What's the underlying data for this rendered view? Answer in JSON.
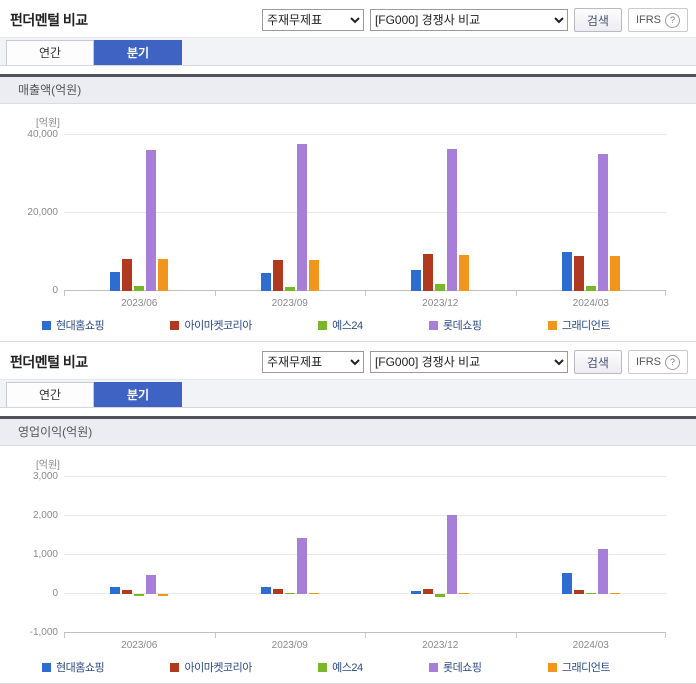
{
  "panels": [
    {
      "title": "펀더멘털 비교",
      "select_statement": "주재무제표",
      "select_compare": "[FG000] 경쟁사 비교",
      "search_label": "검색",
      "ifrs_label": "IFRS",
      "help_label": "?",
      "tab_annual": "연간",
      "tab_quarterly": "분기",
      "section_title": "매출액(억원)",
      "unit_label": "[억원]"
    },
    {
      "title": "펀더멘털 비교",
      "select_statement": "주재무제표",
      "select_compare": "[FG000] 경쟁사 비교",
      "search_label": "검색",
      "ifrs_label": "IFRS",
      "help_label": "?",
      "tab_annual": "연간",
      "tab_quarterly": "분기",
      "section_title": "영업이익(억원)",
      "unit_label": "[억원]"
    }
  ],
  "chart_data": [
    {
      "type": "bar",
      "title": "매출액(억원)",
      "ylabel": "[억원]",
      "categories": [
        "2023/06",
        "2023/09",
        "2023/12",
        "2024/03"
      ],
      "series": [
        {
          "name": "현대홈쇼핑",
          "color": "#2f6cd0",
          "values": [
            4900,
            4700,
            5500,
            9900
          ]
        },
        {
          "name": "아이마켓코리아",
          "color": "#b0391f",
          "values": [
            8300,
            7900,
            9400,
            9000
          ]
        },
        {
          "name": "예스24",
          "color": "#7ab629",
          "values": [
            1300,
            1000,
            1700,
            1300
          ]
        },
        {
          "name": "롯데쇼핑",
          "color": "#a87fd8",
          "values": [
            36200,
            37600,
            36300,
            35200
          ]
        },
        {
          "name": "그래디언트",
          "color": "#f2951d",
          "values": [
            8300,
            7900,
            9300,
            9000
          ]
        }
      ],
      "ylim": [
        0,
        40000
      ],
      "yticks": [
        0,
        20000,
        40000
      ],
      "grid": true,
      "legend_position": "bottom"
    },
    {
      "type": "bar",
      "title": "영업이익(억원)",
      "ylabel": "[억원]",
      "categories": [
        "2023/06",
        "2023/09",
        "2023/12",
        "2024/03"
      ],
      "series": [
        {
          "name": "현대홈쇼핑",
          "color": "#2f6cd0",
          "values": [
            175,
            185,
            70,
            550
          ]
        },
        {
          "name": "아이마켓코리아",
          "color": "#b0391f",
          "values": [
            115,
            125,
            120,
            115
          ]
        },
        {
          "name": "예스24",
          "color": "#7ab629",
          "values": [
            -40,
            30,
            -70,
            20
          ]
        },
        {
          "name": "롯데쇼핑",
          "color": "#a87fd8",
          "values": [
            500,
            1425,
            2025,
            1150
          ]
        },
        {
          "name": "그래디언트",
          "color": "#f2951d",
          "values": [
            -55,
            15,
            25,
            20
          ]
        }
      ],
      "ylim": [
        -1000,
        3000
      ],
      "yticks": [
        -1000,
        0,
        1000,
        2000,
        3000
      ],
      "grid": true,
      "legend_position": "bottom"
    }
  ]
}
